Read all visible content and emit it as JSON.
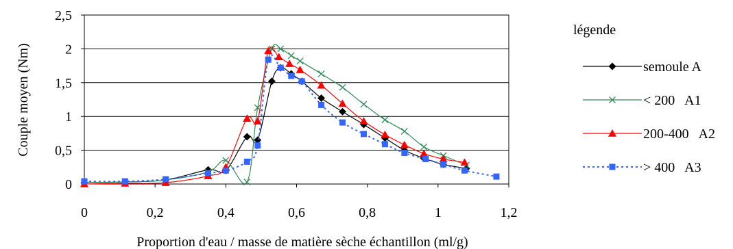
{
  "chart_data": {
    "type": "line",
    "xlabel": "Proportion d'eau / masse de matière sèche échantillon (ml/g)",
    "ylabel": "Couple moyen (Nm)",
    "xlim": [
      0,
      1.2
    ],
    "ylim": [
      0,
      2.5
    ],
    "x_ticks": [
      "0",
      "0,2",
      "0,4",
      "0,6",
      "0,8",
      "1",
      "1,2"
    ],
    "y_ticks": [
      "0",
      "0,5",
      "1",
      "1,5",
      "2",
      "2,5"
    ],
    "grid": "horizontal",
    "legend_title": "légende",
    "legend_position": "right",
    "series": [
      {
        "name": "semoule A",
        "color": "#000000",
        "marker": "diamond",
        "line": "solid",
        "points": [
          [
            0,
            0.02
          ],
          [
            0.115,
            0.03
          ],
          [
            0.23,
            0.06
          ],
          [
            0.35,
            0.21
          ],
          [
            0.4,
            0.2
          ],
          [
            0.46,
            0.7
          ],
          [
            0.49,
            0.65
          ],
          [
            0.53,
            1.52
          ],
          [
            0.555,
            1.72
          ],
          [
            0.585,
            1.63
          ],
          [
            0.615,
            1.52
          ],
          [
            0.67,
            1.27
          ],
          [
            0.73,
            1.07
          ],
          [
            0.79,
            0.88
          ],
          [
            0.85,
            0.68
          ],
          [
            0.905,
            0.5
          ],
          [
            0.96,
            0.38
          ],
          [
            1.015,
            0.29
          ],
          [
            1.08,
            0.23
          ]
        ]
      },
      {
        "name": "< 200   A1",
        "color": "#2e8b57",
        "marker": "x",
        "line": "solid",
        "points": [
          [
            0,
            0.02
          ],
          [
            0.115,
            0.03
          ],
          [
            0.23,
            0.06
          ],
          [
            0.35,
            0.18
          ],
          [
            0.4,
            0.35
          ],
          [
            0.46,
            0.03
          ],
          [
            0.49,
            1.13
          ],
          [
            0.53,
            2.0
          ],
          [
            0.555,
            2.0
          ],
          [
            0.585,
            1.9
          ],
          [
            0.61,
            1.82
          ],
          [
            0.67,
            1.63
          ],
          [
            0.73,
            1.43
          ],
          [
            0.79,
            1.18
          ],
          [
            0.85,
            0.95
          ],
          [
            0.905,
            0.78
          ],
          [
            0.96,
            0.55
          ],
          [
            1.015,
            0.42
          ],
          [
            1.08,
            0.28
          ]
        ]
      },
      {
        "name": "200-400   A2",
        "color": "#ff0000",
        "marker": "triangle",
        "line": "solid",
        "points": [
          [
            0,
            0.0
          ],
          [
            0.115,
            0.01
          ],
          [
            0.23,
            0.02
          ],
          [
            0.35,
            0.12
          ],
          [
            0.4,
            0.25
          ],
          [
            0.46,
            0.97
          ],
          [
            0.49,
            0.93
          ],
          [
            0.52,
            1.97
          ],
          [
            0.55,
            1.88
          ],
          [
            0.58,
            1.78
          ],
          [
            0.61,
            1.69
          ],
          [
            0.67,
            1.46
          ],
          [
            0.73,
            1.19
          ],
          [
            0.79,
            0.93
          ],
          [
            0.85,
            0.73
          ],
          [
            0.905,
            0.58
          ],
          [
            0.96,
            0.45
          ],
          [
            1.015,
            0.37
          ],
          [
            1.075,
            0.32
          ]
        ]
      },
      {
        "name": "> 400   A3",
        "color": "#3366ff",
        "marker": "square",
        "line": "dotted",
        "points": [
          [
            0,
            0.04
          ],
          [
            0.115,
            0.04
          ],
          [
            0.23,
            0.07
          ],
          [
            0.35,
            0.16
          ],
          [
            0.4,
            0.2
          ],
          [
            0.46,
            0.33
          ],
          [
            0.49,
            0.57
          ],
          [
            0.52,
            1.84
          ],
          [
            0.555,
            1.72
          ],
          [
            0.585,
            1.6
          ],
          [
            0.615,
            1.52
          ],
          [
            0.67,
            1.17
          ],
          [
            0.73,
            0.91
          ],
          [
            0.79,
            0.74
          ],
          [
            0.85,
            0.59
          ],
          [
            0.905,
            0.46
          ],
          [
            0.965,
            0.37
          ],
          [
            1.015,
            0.29
          ],
          [
            1.075,
            0.2
          ],
          [
            1.165,
            0.11
          ]
        ]
      }
    ]
  }
}
